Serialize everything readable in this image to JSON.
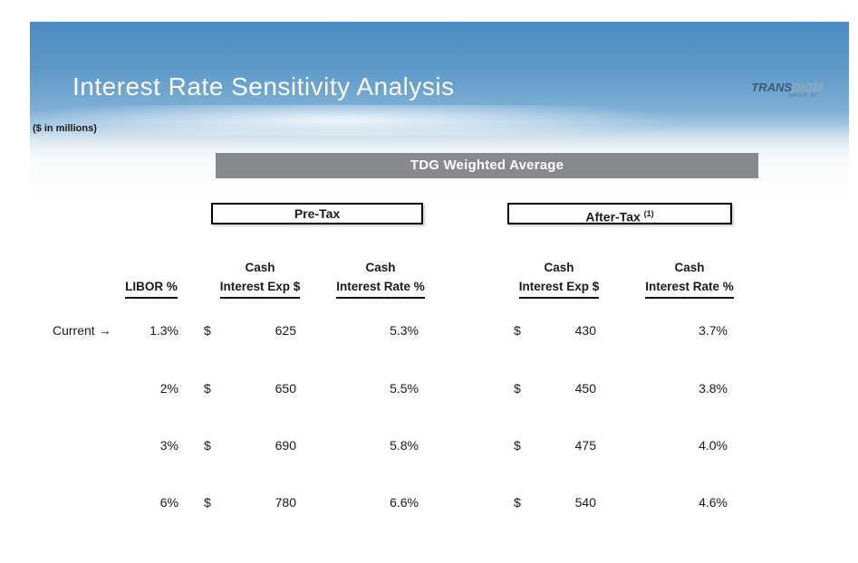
{
  "page": {
    "title": "Interest Rate Sensitivity Analysis",
    "units_note": "($ in millions)",
    "logo": {
      "brand_bold": "TRANS",
      "brand_light": "DIGM",
      "subtext": "GROUP INC."
    },
    "banner_label": "TDG Weighted Average",
    "colors": {
      "header_blue_top": "#4b8bc1",
      "banner_gray": "#87898c",
      "title_white": "#fbfdfe",
      "text_black": "#1a1a1a"
    }
  },
  "groups": {
    "pretax_label": "Pre-Tax",
    "aftertax_label": "After-Tax",
    "aftertax_footnote_ref": "(1)"
  },
  "table": {
    "libor_header": "LIBOR %",
    "headers": {
      "pretax_exp_line1": "Cash",
      "pretax_exp_line2": "Interest Exp $",
      "pretax_rate_line1": "Cash",
      "pretax_rate_line2": "Interest Rate %",
      "aftertax_exp_line1": "Cash",
      "aftertax_exp_line2": "Interest Exp $",
      "aftertax_rate_line1": "Cash",
      "aftertax_rate_line2": "Interest Rate %"
    },
    "current_marker": "Current →",
    "currency_symbol": "$",
    "rows": [
      {
        "libor": "1.3%",
        "pretax_exp": "625",
        "pretax_rate": "5.3%",
        "aftertax_exp": "430",
        "aftertax_rate": "3.7%"
      },
      {
        "libor": "2%",
        "pretax_exp": "650",
        "pretax_rate": "5.5%",
        "aftertax_exp": "450",
        "aftertax_rate": "3.8%"
      },
      {
        "libor": "3%",
        "pretax_exp": "690",
        "pretax_rate": "5.8%",
        "aftertax_exp": "475",
        "aftertax_rate": "4.0%"
      },
      {
        "libor": "6%",
        "pretax_exp": "780",
        "pretax_rate": "6.6%",
        "aftertax_exp": "540",
        "aftertax_rate": "4.6%"
      }
    ]
  }
}
